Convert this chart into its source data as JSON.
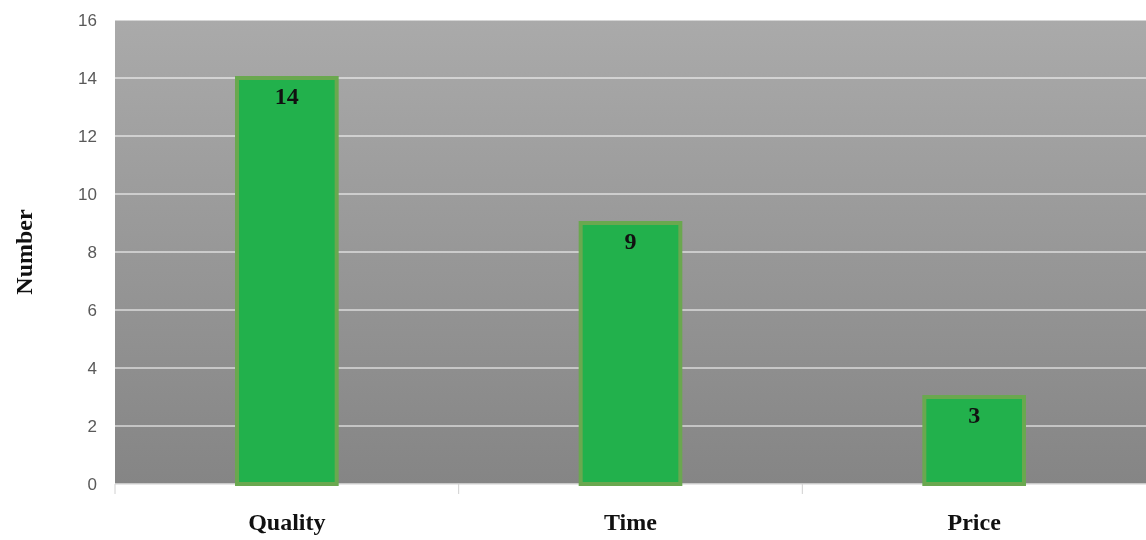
{
  "chart_data": {
    "type": "bar",
    "ylabel": "Number",
    "categories": [
      "Quality",
      "Time",
      "Price"
    ],
    "values": [
      14,
      9,
      3
    ],
    "color": "#22b14c",
    "ylim": [
      0,
      16
    ],
    "yticks": [
      0,
      2,
      4,
      6,
      8,
      10,
      12,
      14,
      16
    ],
    "grid": "y",
    "data_labels": true
  }
}
